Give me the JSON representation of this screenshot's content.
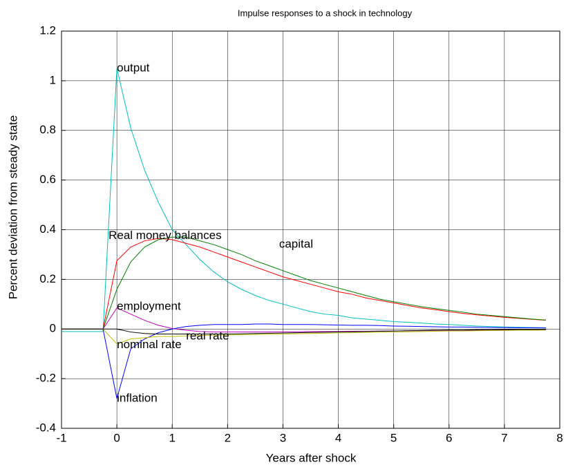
{
  "chart_data": {
    "type": "line",
    "title": "Impulse responses to a shock in technology",
    "xlabel": "Years after shock",
    "ylabel": "Percent deviation from steady state",
    "x": [
      -1,
      -0.75,
      -0.5,
      -0.25,
      0,
      0.25,
      0.5,
      0.75,
      1,
      1.25,
      1.5,
      1.75,
      2,
      2.25,
      2.5,
      2.75,
      3,
      3.25,
      3.5,
      3.75,
      4,
      4.25,
      4.5,
      4.75,
      5,
      5.25,
      5.5,
      5.75,
      6,
      6.25,
      6.5,
      6.75,
      7,
      7.25,
      7.5,
      7.75
    ],
    "series": [
      {
        "color": "#00bfbf",
        "values": [
          -0.01,
          -0.01,
          -0.01,
          -0.01,
          1.05,
          0.81,
          0.64,
          0.51,
          0.4,
          0.34,
          0.28,
          0.23,
          0.19,
          0.16,
          0.135,
          0.115,
          0.1,
          0.085,
          0.07,
          0.06,
          0.055,
          0.045,
          0.04,
          0.035,
          0.03,
          0.027,
          0.024,
          0.02,
          0.018,
          0.015,
          0.012,
          0.01,
          0.008,
          0.007,
          0.006,
          0.005
        ]
      },
      {
        "color": "#ff0000",
        "values": [
          0,
          0,
          0,
          0,
          0.275,
          0.33,
          0.355,
          0.365,
          0.36,
          0.345,
          0.33,
          0.31,
          0.29,
          0.27,
          0.25,
          0.23,
          0.21,
          0.195,
          0.18,
          0.165,
          0.15,
          0.14,
          0.125,
          0.115,
          0.105,
          0.095,
          0.085,
          0.078,
          0.07,
          0.063,
          0.057,
          0.052,
          0.047,
          0.043,
          0.039,
          0.035
        ]
      },
      {
        "color": "#008000",
        "values": [
          0,
          0,
          0,
          0,
          0.16,
          0.27,
          0.33,
          0.36,
          0.37,
          0.37,
          0.355,
          0.34,
          0.32,
          0.3,
          0.275,
          0.255,
          0.235,
          0.215,
          0.195,
          0.18,
          0.165,
          0.15,
          0.135,
          0.12,
          0.11,
          0.1,
          0.09,
          0.082,
          0.075,
          0.068,
          0.06,
          0.055,
          0.05,
          0.045,
          0.04,
          0.036
        ]
      },
      {
        "color": "#bf00bf",
        "values": [
          0,
          0,
          0,
          0,
          0.085,
          0.06,
          0.035,
          0.015,
          0.002,
          -0.005,
          -0.01,
          -0.012,
          -0.012,
          -0.012,
          -0.012,
          -0.012,
          -0.011,
          -0.011,
          -0.01,
          -0.01,
          -0.01,
          -0.009,
          -0.009,
          -0.008,
          -0.008,
          -0.007,
          -0.007,
          -0.006,
          -0.006,
          -0.005,
          -0.005,
          -0.005,
          -0.004,
          -0.004,
          -0.004,
          -0.003
        ]
      },
      {
        "color": "#0000ff",
        "values": [
          0,
          0,
          0,
          0,
          -0.28,
          -0.08,
          -0.04,
          -0.015,
          0,
          0.01,
          0.015,
          0.018,
          0.018,
          0.018,
          0.02,
          0.02,
          0.018,
          0.018,
          0.018,
          0.017,
          0.016,
          0.015,
          0.015,
          0.014,
          0.012,
          0.011,
          0.01,
          0.009,
          0.008,
          0.008,
          0.007,
          0.006,
          0.006,
          0.005,
          0.005,
          0.004
        ]
      },
      {
        "color": "#bfbf00",
        "values": [
          0,
          0,
          0,
          0,
          -0.06,
          -0.04,
          -0.035,
          -0.03,
          -0.03,
          -0.028,
          -0.026,
          -0.025,
          -0.024,
          -0.023,
          -0.022,
          -0.021,
          -0.02,
          -0.019,
          -0.018,
          -0.017,
          -0.016,
          -0.015,
          -0.014,
          -0.013,
          -0.012,
          -0.011,
          -0.01,
          -0.009,
          -0.008,
          -0.008,
          -0.007,
          -0.006,
          -0.006,
          -0.005,
          -0.005,
          -0.004
        ]
      },
      {
        "color": "#000000",
        "values": [
          0,
          0,
          0,
          0,
          0,
          -0.012,
          -0.018,
          -0.02,
          -0.02,
          -0.02,
          -0.02,
          -0.02,
          -0.02,
          -0.019,
          -0.018,
          -0.017,
          -0.016,
          -0.015,
          -0.014,
          -0.013,
          -0.012,
          -0.011,
          -0.01,
          -0.009,
          -0.008,
          -0.007,
          -0.006,
          -0.005,
          -0.004,
          -0.004,
          -0.003,
          -0.003,
          -0.002,
          -0.002,
          -0.002,
          -0.002
        ]
      }
    ],
    "annotations": [
      {
        "text": "output",
        "x": 0,
        "y": 1.05
      },
      {
        "text": "Real money balances",
        "x": -0.15,
        "y": 0.375
      },
      {
        "text": "capital",
        "x": 2.93,
        "y": 0.34
      },
      {
        "text": "employment",
        "x": 0,
        "y": 0.09
      },
      {
        "text": "nominal rate",
        "x": 0,
        "y": -0.065
      },
      {
        "text": "real rate",
        "x": 1.25,
        "y": -0.03
      },
      {
        "text": "inflation",
        "x": 0,
        "y": -0.28
      }
    ],
    "xlim": [
      -1,
      8
    ],
    "xticks": [
      -1,
      0,
      1,
      2,
      3,
      4,
      5,
      6,
      7,
      8
    ],
    "ylim": [
      -0.4,
      1.2
    ],
    "yticks": [
      -0.4,
      -0.2,
      0,
      0.2,
      0.4,
      0.6,
      0.8,
      1,
      1.2
    ],
    "grid": true
  }
}
